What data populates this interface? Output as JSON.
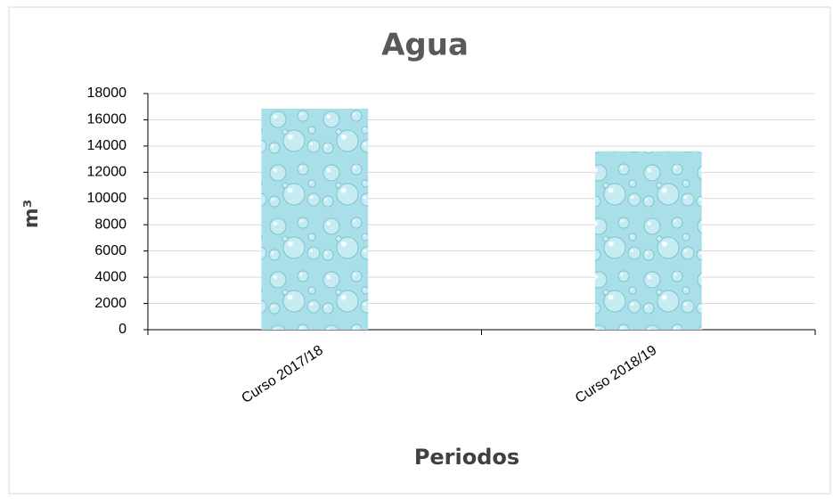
{
  "chart_data": {
    "type": "bar",
    "title": "Agua",
    "x_label": "Periodos",
    "y_label": "m³",
    "categories": [
      "Curso 2017/18",
      "Curso 2018/19"
    ],
    "values": [
      16850,
      13600
    ],
    "color": "#a9dfe8",
    "ylim": [
      0,
      18000
    ],
    "yticks": [
      0,
      2000,
      4000,
      6000,
      8000,
      10000,
      12000,
      14000,
      16000,
      18000
    ],
    "grid": true
  }
}
